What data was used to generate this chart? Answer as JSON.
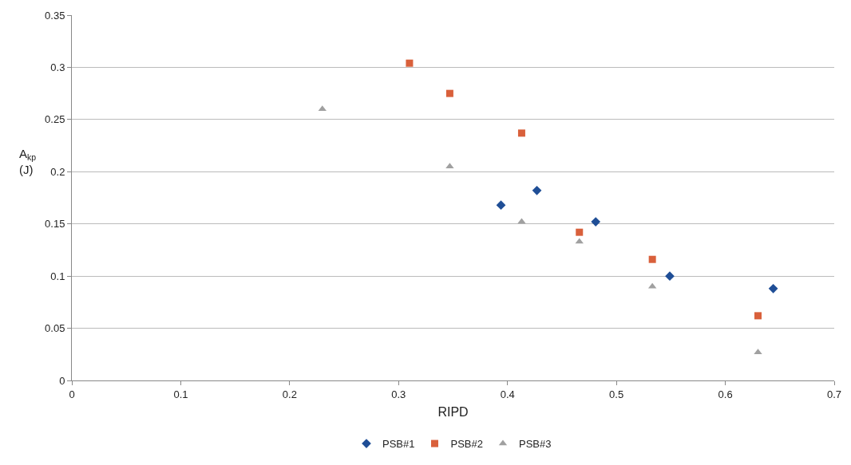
{
  "chart_data": {
    "type": "scatter",
    "xlabel": "RIPD",
    "ylabel": "A$_{kp}$\n(J)",
    "xlim": [
      0,
      0.7
    ],
    "xticks": [
      0,
      0.1,
      0.2,
      0.3,
      0.4,
      0.5,
      0.6,
      0.7
    ],
    "ylim": [
      0,
      0.35
    ],
    "yticks": [
      0,
      0.05,
      0.1,
      0.15,
      0.2,
      0.25,
      0.3,
      0.35
    ],
    "grid": "y",
    "legend": "bottom",
    "series": [
      {
        "name": "PSB#1",
        "color": "#1f4e96",
        "marker": "diamond",
        "x": [
          0.394,
          0.427,
          0.481,
          0.549,
          0.644
        ],
        "values": [
          0.168,
          0.182,
          0.152,
          0.1,
          0.088
        ]
      },
      {
        "name": "PSB#2",
        "color": "#d9603b",
        "marker": "square",
        "x": [
          0.31,
          0.347,
          0.413,
          0.466,
          0.533,
          0.63
        ],
        "values": [
          0.304,
          0.275,
          0.237,
          0.142,
          0.116,
          0.062
        ]
      },
      {
        "name": "PSB#3",
        "color": "#a0a0a0",
        "marker": "triangle",
        "x": [
          0.23,
          0.347,
          0.413,
          0.466,
          0.533,
          0.63
        ],
        "values": [
          0.26,
          0.205,
          0.152,
          0.133,
          0.09,
          0.027
        ]
      }
    ]
  }
}
